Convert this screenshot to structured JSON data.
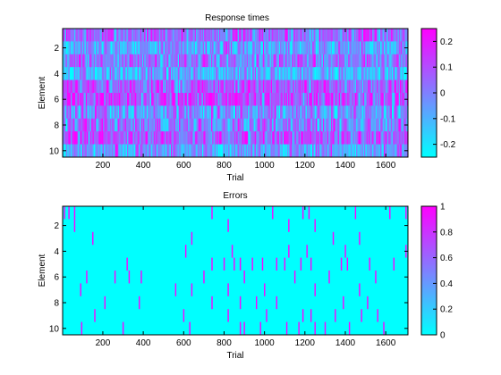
{
  "chart_data": [
    {
      "type": "heatmap",
      "title": "Response times",
      "xlabel": "Trial",
      "ylabel": "Element",
      "xlim": [
        1,
        1710
      ],
      "ylim": [
        0.5,
        10.5
      ],
      "y_reversed": true,
      "xticks": [
        "200",
        "400",
        "600",
        "800",
        "1000",
        "1200",
        "1400",
        "1600"
      ],
      "yticks": [
        "2",
        "4",
        "6",
        "8",
        "10"
      ],
      "rows": 10,
      "trials": 1710,
      "color_range": [
        -0.25,
        0.25
      ],
      "colormap": [
        "#00ffff",
        "#ff00ff"
      ],
      "colorbar_ticks": [
        "-0.2",
        "-0.1",
        "0",
        "0.1",
        "0.2"
      ],
      "row_means": [
        0.05,
        -0.05,
        0.02,
        -0.1,
        0.06,
        0.1,
        -0.04,
        0.01,
        0.08,
        -0.06
      ],
      "cell_value_spread": 0.12
    },
    {
      "type": "heatmap",
      "title": "Errors",
      "xlabel": "Trial",
      "ylabel": "Element",
      "xlim": [
        1,
        1710
      ],
      "ylim": [
        0.5,
        10.5
      ],
      "y_reversed": true,
      "xticks": [
        "200",
        "400",
        "600",
        "800",
        "1000",
        "1200",
        "1400",
        "1600"
      ],
      "yticks": [
        "2",
        "4",
        "6",
        "8",
        "10"
      ],
      "rows": 10,
      "trials": 1710,
      "color_range": [
        0,
        1
      ],
      "colormap": [
        "#00ffff",
        "#ff00ff"
      ],
      "colorbar_ticks": [
        "0",
        "0.2",
        "0.4",
        "0.6",
        "0.8",
        "1"
      ],
      "error_trials": [
        {
          "element": 1,
          "trials": [
            10,
            32,
            60,
            740,
            1040,
            1190,
            1220,
            1450,
            1620,
            1700
          ]
        },
        {
          "element": 2,
          "trials": [
            60,
            820,
            1120,
            1250
          ]
        },
        {
          "element": 3,
          "trials": [
            150,
            640,
            1340,
            1470
          ]
        },
        {
          "element": 4,
          "trials": [
            610,
            840,
            1120,
            1210,
            1400,
            1700
          ]
        },
        {
          "element": 5,
          "trials": [
            320,
            740,
            800,
            850,
            880,
            940,
            990,
            1060,
            1100,
            1180,
            1230,
            1380,
            1410,
            1520,
            1640
          ]
        },
        {
          "element": 6,
          "trials": [
            120,
            260,
            330,
            390,
            700,
            900,
            1150,
            1320,
            1550
          ]
        },
        {
          "element": 7,
          "trials": [
            90,
            560,
            640,
            820,
            1000,
            1250,
            1470
          ]
        },
        {
          "element": 8,
          "trials": [
            210,
            380,
            740,
            880,
            960,
            1060,
            1390,
            1510
          ]
        },
        {
          "element": 9,
          "trials": [
            160,
            600,
            820,
            1010,
            1190,
            1230,
            1350,
            1480,
            1560
          ]
        },
        {
          "element": 10,
          "trials": [
            95,
            300,
            630,
            880,
            900,
            980,
            1110,
            1170,
            1250,
            1300,
            1420,
            1590
          ]
        }
      ]
    }
  ]
}
